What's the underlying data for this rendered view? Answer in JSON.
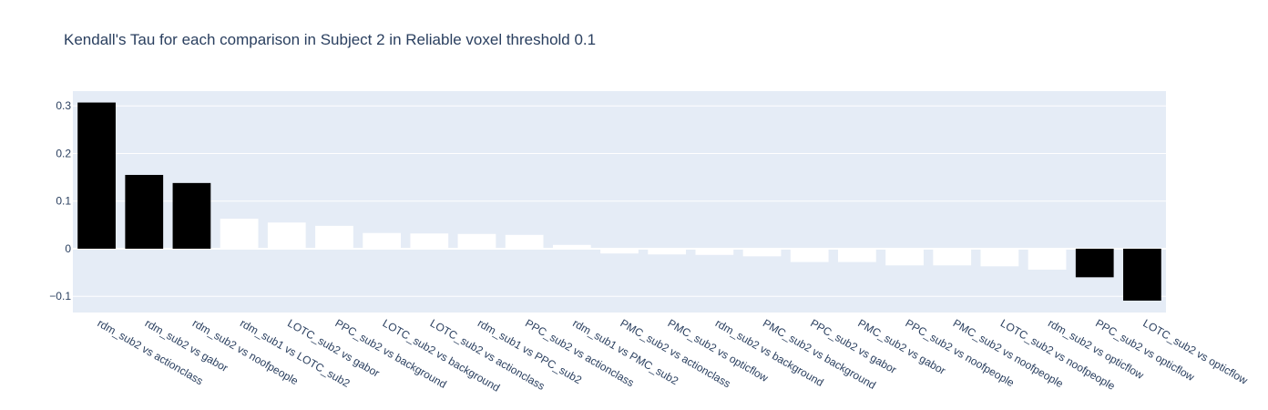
{
  "chart_data": {
    "type": "bar",
    "title": "Kendall's Tau for each comparison in Subject 2 in Reliable voxel threshold 0.1",
    "xlabel": "",
    "ylabel": "",
    "categories": [
      "rdm_sub2 vs actionclass",
      "rdm_sub2 vs gabor",
      "rdm_sub2 vs noofpeople",
      "rdm_sub1 vs LOTC_sub2",
      "LOTC_sub2 vs gabor",
      "PPC_sub2 vs background",
      "LOTC_sub2 vs background",
      "LOTC_sub2 vs actionclass",
      "rdm_sub1 vs PPC_sub2",
      "PPC_sub2 vs actionclass",
      "rdm_sub1 vs PMC_sub2",
      "PMC_sub2 vs actionclass",
      "PMC_sub2 vs opticflow",
      "rdm_sub2 vs background",
      "PMC_sub2 vs background",
      "PPC_sub2 vs gabor",
      "PMC_sub2 vs gabor",
      "PPC_sub2 vs noofpeople",
      "PMC_sub2 vs noofpeople",
      "LOTC_sub2 vs noofpeople",
      "rdm_sub2 vs opticflow",
      "PPC_sub2 vs opticflow",
      "LOTC_sub2 vs opticflow"
    ],
    "values": [
      0.307,
      0.155,
      0.138,
      0.063,
      0.055,
      0.048,
      0.033,
      0.032,
      0.031,
      0.029,
      0.008,
      -0.01,
      -0.012,
      -0.013,
      -0.016,
      -0.028,
      -0.028,
      -0.035,
      -0.035,
      -0.037,
      -0.044,
      -0.06,
      -0.109
    ],
    "bar_colors": [
      "#000000",
      "#000000",
      "#000000",
      "#ffffff",
      "#ffffff",
      "#ffffff",
      "#ffffff",
      "#ffffff",
      "#ffffff",
      "#ffffff",
      "#ffffff",
      "#ffffff",
      "#ffffff",
      "#ffffff",
      "#ffffff",
      "#ffffff",
      "#ffffff",
      "#ffffff",
      "#ffffff",
      "#ffffff",
      "#ffffff",
      "#000000",
      "#000000"
    ],
    "yticks": [
      -0.1,
      0,
      0.1,
      0.2,
      0.3
    ],
    "ytick_labels": [
      "−0.1",
      "0",
      "0.1",
      "0.2",
      "0.3"
    ],
    "ylim": [
      -0.134,
      0.331
    ],
    "grid": true,
    "legend": "none",
    "plot_bgcolor": "#e5ecf6",
    "text_color": "#2a3f5f"
  }
}
